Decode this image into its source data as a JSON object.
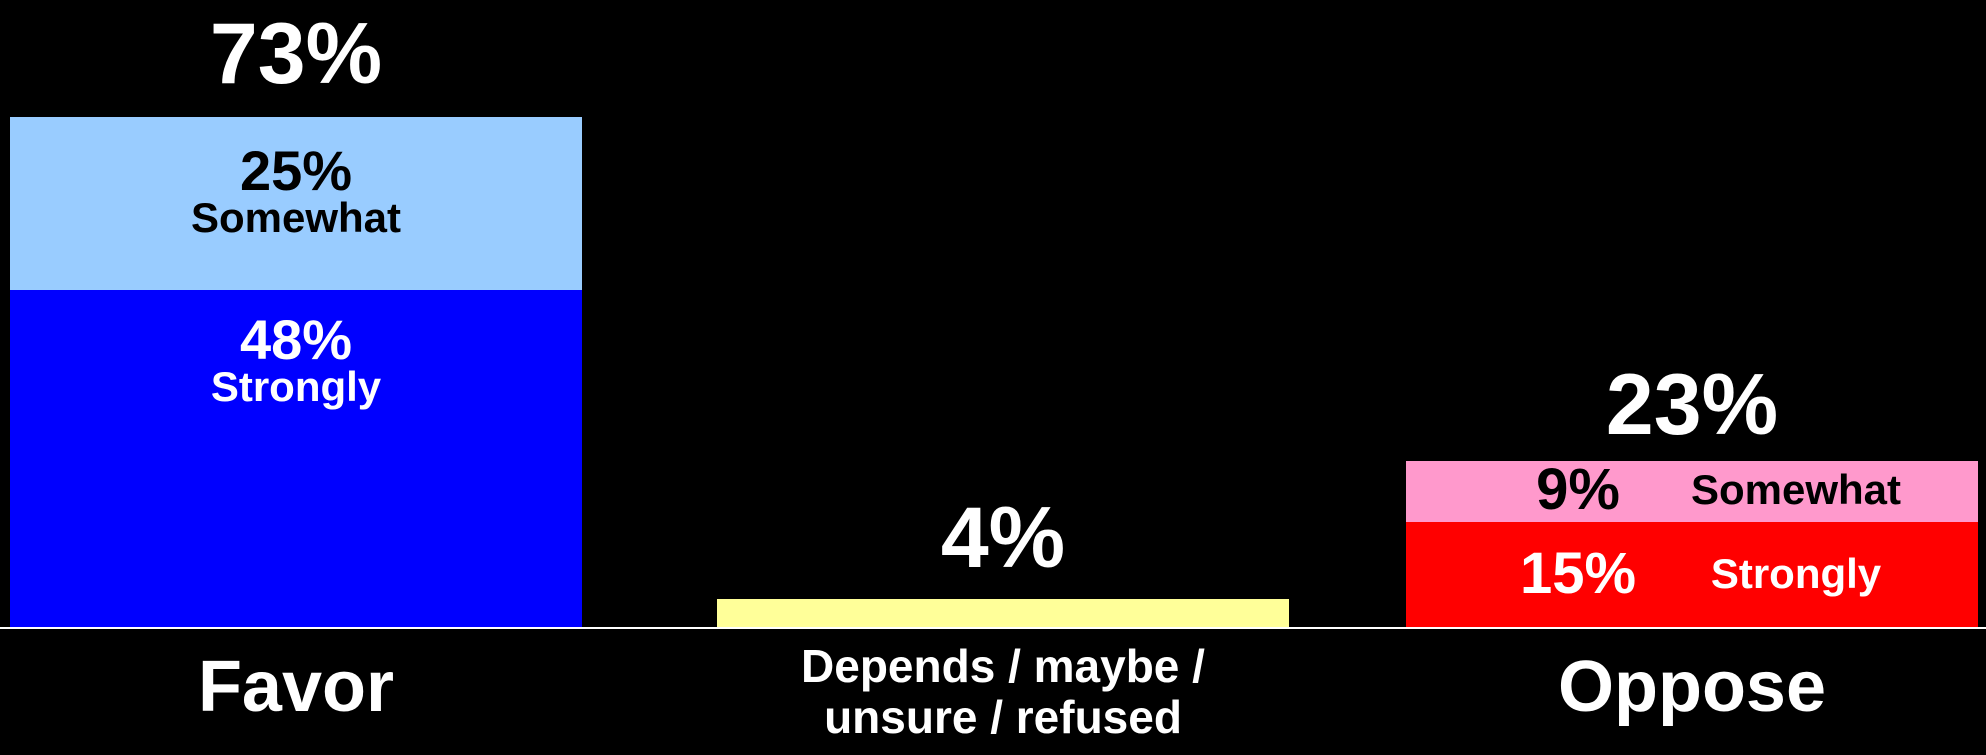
{
  "chart_data": {
    "type": "bar",
    "stacked": true,
    "categories": [
      "Favor",
      "Depends / maybe / unsure / refused",
      "Oppose"
    ],
    "category_lines": [
      [
        "Favor"
      ],
      [
        "Depends / maybe /",
        "unsure / refused"
      ],
      [
        "Oppose"
      ]
    ],
    "totals": [
      73,
      4,
      23
    ],
    "total_labels": [
      "73%",
      "4%",
      "23%"
    ],
    "ylim": [
      0,
      73
    ],
    "grid": false,
    "legend": "none",
    "segments": [
      [
        {
          "name": "Strongly",
          "value": 48,
          "label": "48%",
          "color": "#0000FF",
          "text_color": "#FFFFFF",
          "layout": "stacked"
        },
        {
          "name": "Somewhat",
          "value": 25,
          "label": "25%",
          "color": "#99CCFF",
          "text_color": "#000000",
          "layout": "stacked"
        }
      ],
      [
        {
          "name": "",
          "value": 4,
          "label": "",
          "color": "#FFFF99",
          "text_color": "#000000",
          "layout": "none"
        }
      ],
      [
        {
          "name": "Strongly",
          "value": 15,
          "label": "15%",
          "color": "#FF0000",
          "text_color": "#FFFFFF",
          "layout": "inline"
        },
        {
          "name": "Somewhat",
          "value": 9,
          "label": "9%",
          "color": "#FF99CC",
          "text_color": "#000000",
          "layout": "inline"
        }
      ]
    ]
  }
}
